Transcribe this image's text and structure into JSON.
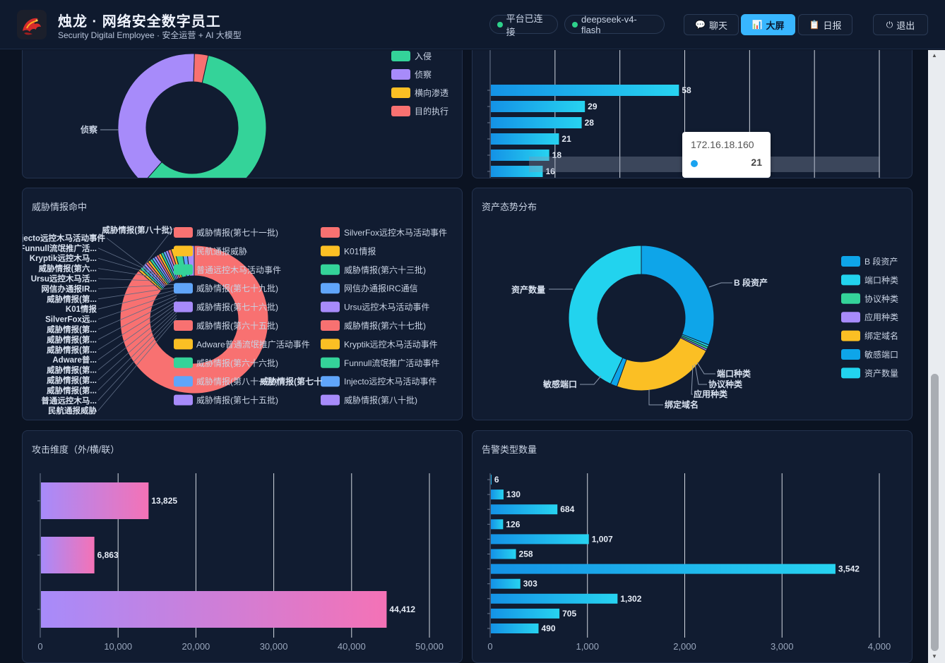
{
  "header": {
    "title": "烛龙 · 网络安全数字员工",
    "subtitle": "Security Digital Employee · 安全运营 + AI 大模型",
    "status_connected": "平台已连接",
    "model_name": "deepseek-v4-flash",
    "nav": [
      {
        "label": "聊天",
        "icon": "chat-bubble-icon"
      },
      {
        "label": "大屏",
        "icon": "bar-chart-icon",
        "active": true
      },
      {
        "label": "日报",
        "icon": "report-icon"
      }
    ],
    "logout_label": "退出",
    "colors": {
      "accent": "#38b6ff",
      "online": "#2ed18b"
    }
  },
  "kill_chain": {
    "legend": [
      "入侵",
      "侦察",
      "横向渗透",
      "目的执行"
    ],
    "legend_colors": [
      "#34d399",
      "#a78bfa",
      "#fbbf24",
      "#f87171"
    ],
    "visible_labels": [
      "侦察",
      "入侵"
    ]
  },
  "attacker_ip": {
    "tooltip": {
      "ip": "172.16.18.160",
      "value": "21"
    }
  },
  "threat_intel": {
    "title": "威胁情报命中",
    "label_list": [
      "威胁情报(第八十批)",
      "Injecto远控木马活动事件",
      "Funnull流氓推广活...",
      "Kryptik远控木马...",
      "威胁情报(第六...",
      "Ursu远控木马活...",
      "网信办通报IR...",
      "威胁情报(第...",
      "K01情报",
      "SilverFox远...",
      "威胁情报(第...",
      "威胁情报(第...",
      "威胁情报(第...",
      "Adware普...",
      "威胁情报(第...",
      "威胁情报(第...",
      "威胁情报(第...",
      "普通远控木马...",
      "民航通报威胁"
    ],
    "legend_left": [
      "威胁情报(第七十一批)",
      "民航通报威胁",
      "普通远控木马活动事件",
      "威胁情报(第七十九批)",
      "威胁情报(第七十六批)",
      "威胁情报(第六十五批)",
      "Adware普通流氓推广活动事件",
      "威胁情报(第六十六批)",
      "威胁情报(第八十一批)",
      "威胁情报(第七十五批)"
    ],
    "legend_right": [
      "SilverFox远控木马活动事件",
      "K01情报",
      "威胁情报(第六十三批)",
      "网信办通报IRC通信",
      "Ursu远控木马活动事件",
      "威胁情报(第六十七批)",
      "Kryptik远控木马活动事件",
      "Funnull流氓推广活动事件",
      "Injecto远控木马活动事件",
      "威胁情报(第八十批)"
    ],
    "overlap_label": "威胁情报(第七十",
    "palette": [
      "#f87171",
      "#fbbf24",
      "#34d399",
      "#60a5fa",
      "#a78bfa"
    ]
  },
  "asset_posture": {
    "title": "资产态势分布",
    "legend": [
      "B 段资产",
      "端口种类",
      "协议种类",
      "应用种类",
      "绑定域名",
      "敏感端口",
      "资产数量"
    ],
    "legend_colors": [
      "#0ea5e9",
      "#22d3ee",
      "#34d399",
      "#a78bfa",
      "#fbbf24",
      "#0ea5e9",
      "#22d3ee"
    ],
    "callouts": [
      "B 段资产",
      "端口种类",
      "协议种类",
      "应用种类",
      "绑定域名",
      "敏感端口",
      "资产数量"
    ]
  },
  "attack_dimension": {
    "title": "攻击维度（外/横/联）"
  },
  "alert_types": {
    "title": "告警类型数量"
  },
  "chart_data": [
    {
      "type": "pie",
      "labels": [
        "入侵",
        "侦察",
        "横向渗透",
        "目的执行"
      ],
      "values": [
        58,
        39,
        0,
        3
      ]
    },
    {
      "type": "bar",
      "orientation": "horizontal",
      "categories": [
        "",
        "",
        "",
        "",
        "",
        "",
        ""
      ],
      "values": [
        58,
        29,
        28,
        21,
        18,
        16,
        16
      ],
      "xlim": [
        0,
        120
      ],
      "xticks": [
        "0",
        "20",
        "40",
        "60",
        "80",
        "100",
        "120"
      ]
    },
    {
      "type": "pie",
      "labels": [
        "威胁情报(第七十一批)",
        "民航通报威胁",
        "普通远控木马活动事件",
        "威胁情报(第七十九批)",
        "威胁情报(第七十六批)",
        "威胁情报(第六十五批)",
        "Adware普通流氓推广活动事件",
        "威胁情报(第六十六批)",
        "威胁情报(第八十一批)",
        "威胁情报(第七十五批)",
        "SilverFox远控木马活动事件",
        "K01情报",
        "威胁情报(第六十三批)",
        "网信办通报IRC通信",
        "Ursu远控木马活动事件",
        "威胁情报(第六十七批)",
        "Kryptik远控木马活动事件",
        "Funnull流氓推广活动事件",
        "Injecto远控木马活动事件",
        "威胁情报(第八十批)"
      ],
      "values": [
        78,
        0.5,
        0.5,
        0.5,
        0.5,
        0.5,
        0.5,
        0.5,
        0.5,
        0.5,
        0.5,
        0.5,
        0.5,
        0.5,
        0.5,
        0.6,
        0.6,
        1.5,
        1,
        1.5
      ]
    },
    {
      "type": "pie",
      "labels": [
        "B 段资产",
        "端口种类",
        "协议种类",
        "应用种类",
        "绑定域名",
        "敏感端口",
        "资产数量"
      ],
      "values": [
        31,
        0.5,
        0.5,
        0.4,
        23,
        1.5,
        43
      ]
    },
    {
      "type": "bar",
      "orientation": "horizontal",
      "categories": [
        "",
        "",
        ""
      ],
      "values": [
        13825,
        6863,
        44412
      ],
      "xlim": [
        0,
        50000
      ],
      "xticks": [
        "0",
        "10,000",
        "20,000",
        "30,000",
        "40,000",
        "50,000"
      ]
    },
    {
      "type": "bar",
      "orientation": "horizontal",
      "categories": [
        "",
        "",
        "",
        "",
        "",
        "",
        "",
        "",
        "",
        "",
        ""
      ],
      "values": [
        6,
        130,
        684,
        126,
        1007,
        258,
        3542,
        303,
        1302,
        705,
        490
      ],
      "xlim": [
        0,
        4000
      ],
      "xticks": [
        "0",
        "1,000",
        "2,000",
        "3,000",
        "4,000"
      ]
    }
  ]
}
